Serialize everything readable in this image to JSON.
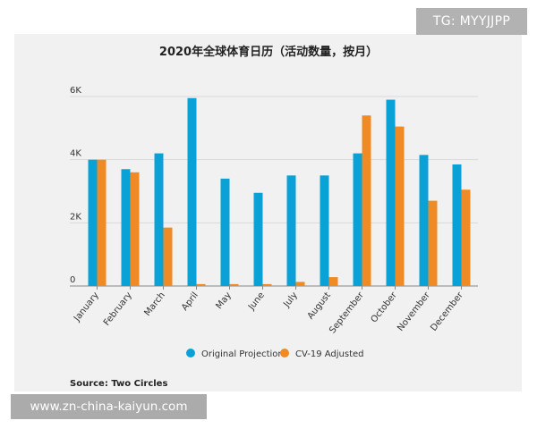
{
  "watermark": {
    "top_right": "TG: MYYJJPP",
    "bottom_left": "www.zn-china-kaiyun.com"
  },
  "colors": {
    "original": "#0aa2d6",
    "adjusted": "#f08a25",
    "grid": "#d9d9d9",
    "axis": "#888888"
  },
  "chart_data": {
    "type": "bar",
    "title": "2020年全球体育日历（活动数量，按月）",
    "xlabel": "",
    "ylabel": "",
    "ylim": [
      0,
      6000
    ],
    "yticks": [
      {
        "value": 0,
        "label": "0"
      },
      {
        "value": 2000,
        "label": "2K"
      },
      {
        "value": 4000,
        "label": "4K"
      },
      {
        "value": 6000,
        "label": "6K"
      }
    ],
    "categories": [
      "January",
      "February",
      "March",
      "April",
      "May",
      "June",
      "July",
      "August",
      "September",
      "October",
      "November",
      "December"
    ],
    "series": [
      {
        "name": "Original Projection",
        "values": [
          4000,
          3700,
          4200,
          5950,
          3400,
          2950,
          3500,
          3500,
          4200,
          5900,
          4150,
          3850
        ]
      },
      {
        "name": "CV-19 Adjusted",
        "values": [
          4000,
          3600,
          1850,
          60,
          60,
          60,
          130,
          280,
          5400,
          5050,
          2700,
          3050
        ]
      }
    ],
    "grid": true,
    "legend_position": "bottom",
    "source": "Source: Two Circles"
  }
}
